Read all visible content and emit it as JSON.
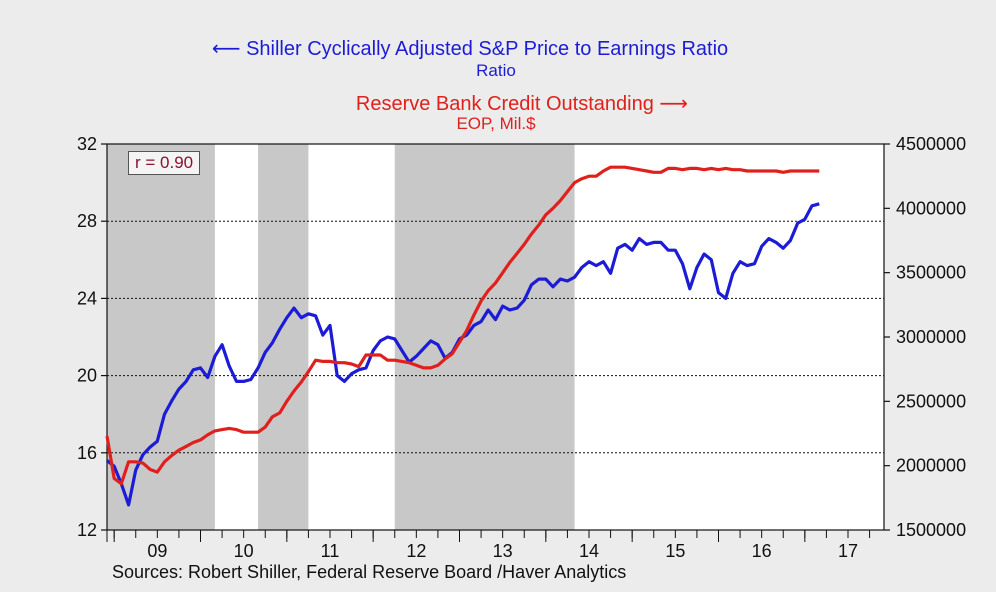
{
  "legend": {
    "blue_title": "Shiller Cyclically Adjusted S&P Price to Earnings Ratio",
    "blue_unit": "Ratio",
    "red_title": "Reserve Bank Credit Outstanding",
    "red_unit": "EOP, Mil.$",
    "blue_arrow": "⟵",
    "red_arrow": "⟶"
  },
  "annotation": "r = 0.90",
  "sources": "Sources:  Robert Shiller, Federal Reserve Board /Haver Analytics",
  "colors": {
    "blue": "#1c1cd6",
    "red": "#e0201c",
    "shade": "#c8c8c8",
    "background": "#ececec"
  },
  "chart_data": {
    "type": "line",
    "x_tick_labels": [
      "09",
      "10",
      "11",
      "12",
      "13",
      "14",
      "15",
      "16",
      "17"
    ],
    "x_range": [
      2008.917,
      2017.917
    ],
    "left_axis": {
      "ticks": [
        "12",
        "16",
        "20",
        "24",
        "28",
        "32"
      ],
      "ylim": [
        12,
        32
      ]
    },
    "right_axis": {
      "ticks": [
        "1500000",
        "2000000",
        "2500000",
        "3000000",
        "3500000",
        "4000000",
        "4500000"
      ],
      "ylim": [
        1500000,
        4500000
      ]
    },
    "gridlines": [
      16,
      20,
      24,
      28
    ],
    "shaded_periods": [
      [
        2008.917,
        2010.167
      ],
      [
        2010.667,
        2011.25
      ],
      [
        2012.25,
        2014.333
      ]
    ],
    "series": [
      {
        "name": "Shiller Cyclically Adjusted S&P Price to Earnings Ratio",
        "axis": "left",
        "points": [
          [
            2008.917,
            15.6
          ],
          [
            2009.0,
            15.3
          ],
          [
            2009.083,
            14.4
          ],
          [
            2009.167,
            13.3
          ],
          [
            2009.25,
            15.1
          ],
          [
            2009.333,
            15.9
          ],
          [
            2009.417,
            16.3
          ],
          [
            2009.5,
            16.6
          ],
          [
            2009.583,
            18.0
          ],
          [
            2009.667,
            18.7
          ],
          [
            2009.75,
            19.3
          ],
          [
            2009.833,
            19.7
          ],
          [
            2009.917,
            20.3
          ],
          [
            2010.0,
            20.4
          ],
          [
            2010.083,
            19.9
          ],
          [
            2010.167,
            21.0
          ],
          [
            2010.25,
            21.6
          ],
          [
            2010.333,
            20.5
          ],
          [
            2010.417,
            19.7
          ],
          [
            2010.5,
            19.7
          ],
          [
            2010.583,
            19.8
          ],
          [
            2010.667,
            20.4
          ],
          [
            2010.75,
            21.2
          ],
          [
            2010.833,
            21.7
          ],
          [
            2010.917,
            22.4
          ],
          [
            2011.0,
            23.0
          ],
          [
            2011.083,
            23.5
          ],
          [
            2011.167,
            23.0
          ],
          [
            2011.25,
            23.2
          ],
          [
            2011.333,
            23.1
          ],
          [
            2011.417,
            22.1
          ],
          [
            2011.5,
            22.6
          ],
          [
            2011.583,
            20.0
          ],
          [
            2011.667,
            19.7
          ],
          [
            2011.75,
            20.1
          ],
          [
            2011.833,
            20.3
          ],
          [
            2011.917,
            20.4
          ],
          [
            2012.0,
            21.3
          ],
          [
            2012.083,
            21.8
          ],
          [
            2012.167,
            22.0
          ],
          [
            2012.25,
            21.9
          ],
          [
            2012.333,
            21.3
          ],
          [
            2012.417,
            20.7
          ],
          [
            2012.5,
            21.0
          ],
          [
            2012.583,
            21.4
          ],
          [
            2012.667,
            21.8
          ],
          [
            2012.75,
            21.6
          ],
          [
            2012.833,
            20.9
          ],
          [
            2012.917,
            21.2
          ],
          [
            2013.0,
            21.9
          ],
          [
            2013.083,
            22.1
          ],
          [
            2013.167,
            22.6
          ],
          [
            2013.25,
            22.8
          ],
          [
            2013.333,
            23.4
          ],
          [
            2013.417,
            22.9
          ],
          [
            2013.5,
            23.6
          ],
          [
            2013.583,
            23.4
          ],
          [
            2013.667,
            23.5
          ],
          [
            2013.75,
            23.9
          ],
          [
            2013.833,
            24.7
          ],
          [
            2013.917,
            25.0
          ],
          [
            2014.0,
            25.0
          ],
          [
            2014.083,
            24.6
          ],
          [
            2014.167,
            25.0
          ],
          [
            2014.25,
            24.9
          ],
          [
            2014.333,
            25.1
          ],
          [
            2014.417,
            25.6
          ],
          [
            2014.5,
            25.9
          ],
          [
            2014.583,
            25.7
          ],
          [
            2014.667,
            25.9
          ],
          [
            2014.75,
            25.3
          ],
          [
            2014.833,
            26.6
          ],
          [
            2014.917,
            26.8
          ],
          [
            2015.0,
            26.5
          ],
          [
            2015.083,
            27.1
          ],
          [
            2015.167,
            26.8
          ],
          [
            2015.25,
            26.9
          ],
          [
            2015.333,
            26.9
          ],
          [
            2015.417,
            26.5
          ],
          [
            2015.5,
            26.5
          ],
          [
            2015.583,
            25.8
          ],
          [
            2015.667,
            24.5
          ],
          [
            2015.75,
            25.6
          ],
          [
            2015.833,
            26.3
          ],
          [
            2015.917,
            26.0
          ],
          [
            2016.0,
            24.3
          ],
          [
            2016.083,
            24.0
          ],
          [
            2016.167,
            25.3
          ],
          [
            2016.25,
            25.9
          ],
          [
            2016.333,
            25.7
          ],
          [
            2016.417,
            25.8
          ],
          [
            2016.5,
            26.7
          ],
          [
            2016.583,
            27.1
          ],
          [
            2016.667,
            26.9
          ],
          [
            2016.75,
            26.6
          ],
          [
            2016.833,
            27.0
          ],
          [
            2016.917,
            27.9
          ],
          [
            2017.0,
            28.1
          ],
          [
            2017.083,
            28.8
          ],
          [
            2017.167,
            28.9
          ]
        ]
      },
      {
        "name": "Reserve Bank Credit Outstanding",
        "axis": "right",
        "points": [
          [
            2008.917,
            2230000
          ],
          [
            2009.0,
            1900000
          ],
          [
            2009.083,
            1860000
          ],
          [
            2009.167,
            2030000
          ],
          [
            2009.25,
            2030000
          ],
          [
            2009.333,
            2020000
          ],
          [
            2009.417,
            1970000
          ],
          [
            2009.5,
            1950000
          ],
          [
            2009.583,
            2030000
          ],
          [
            2009.667,
            2080000
          ],
          [
            2009.75,
            2120000
          ],
          [
            2009.833,
            2150000
          ],
          [
            2009.917,
            2180000
          ],
          [
            2010.0,
            2200000
          ],
          [
            2010.083,
            2240000
          ],
          [
            2010.167,
            2270000
          ],
          [
            2010.25,
            2280000
          ],
          [
            2010.333,
            2290000
          ],
          [
            2010.417,
            2280000
          ],
          [
            2010.5,
            2260000
          ],
          [
            2010.583,
            2260000
          ],
          [
            2010.667,
            2260000
          ],
          [
            2010.75,
            2300000
          ],
          [
            2010.833,
            2380000
          ],
          [
            2010.917,
            2410000
          ],
          [
            2011.0,
            2500000
          ],
          [
            2011.083,
            2580000
          ],
          [
            2011.167,
            2650000
          ],
          [
            2011.25,
            2730000
          ],
          [
            2011.333,
            2820000
          ],
          [
            2011.417,
            2810000
          ],
          [
            2011.5,
            2810000
          ],
          [
            2011.583,
            2800000
          ],
          [
            2011.667,
            2800000
          ],
          [
            2011.75,
            2790000
          ],
          [
            2011.833,
            2770000
          ],
          [
            2011.917,
            2860000
          ],
          [
            2012.0,
            2860000
          ],
          [
            2012.083,
            2860000
          ],
          [
            2012.167,
            2820000
          ],
          [
            2012.25,
            2820000
          ],
          [
            2012.333,
            2810000
          ],
          [
            2012.417,
            2800000
          ],
          [
            2012.5,
            2780000
          ],
          [
            2012.583,
            2760000
          ],
          [
            2012.667,
            2760000
          ],
          [
            2012.75,
            2780000
          ],
          [
            2012.833,
            2830000
          ],
          [
            2012.917,
            2870000
          ],
          [
            2013.0,
            2960000
          ],
          [
            2013.083,
            3050000
          ],
          [
            2013.167,
            3170000
          ],
          [
            2013.25,
            3280000
          ],
          [
            2013.333,
            3360000
          ],
          [
            2013.417,
            3420000
          ],
          [
            2013.5,
            3500000
          ],
          [
            2013.583,
            3580000
          ],
          [
            2013.667,
            3650000
          ],
          [
            2013.75,
            3720000
          ],
          [
            2013.833,
            3800000
          ],
          [
            2013.917,
            3870000
          ],
          [
            2014.0,
            3950000
          ],
          [
            2014.083,
            4000000
          ],
          [
            2014.167,
            4060000
          ],
          [
            2014.25,
            4130000
          ],
          [
            2014.333,
            4200000
          ],
          [
            2014.417,
            4230000
          ],
          [
            2014.5,
            4250000
          ],
          [
            2014.583,
            4250000
          ],
          [
            2014.667,
            4290000
          ],
          [
            2014.75,
            4320000
          ],
          [
            2014.833,
            4320000
          ],
          [
            2014.917,
            4320000
          ],
          [
            2015.0,
            4310000
          ],
          [
            2015.083,
            4300000
          ],
          [
            2015.167,
            4290000
          ],
          [
            2015.25,
            4280000
          ],
          [
            2015.333,
            4280000
          ],
          [
            2015.417,
            4310000
          ],
          [
            2015.5,
            4310000
          ],
          [
            2015.583,
            4300000
          ],
          [
            2015.667,
            4310000
          ],
          [
            2015.75,
            4310000
          ],
          [
            2015.833,
            4300000
          ],
          [
            2015.917,
            4310000
          ],
          [
            2016.0,
            4300000
          ],
          [
            2016.083,
            4310000
          ],
          [
            2016.167,
            4300000
          ],
          [
            2016.25,
            4300000
          ],
          [
            2016.333,
            4290000
          ],
          [
            2016.417,
            4290000
          ],
          [
            2016.5,
            4290000
          ],
          [
            2016.583,
            4290000
          ],
          [
            2016.667,
            4290000
          ],
          [
            2016.75,
            4280000
          ],
          [
            2016.833,
            4290000
          ],
          [
            2016.917,
            4290000
          ],
          [
            2017.0,
            4290000
          ],
          [
            2017.083,
            4290000
          ],
          [
            2017.167,
            4290000
          ]
        ]
      }
    ]
  }
}
